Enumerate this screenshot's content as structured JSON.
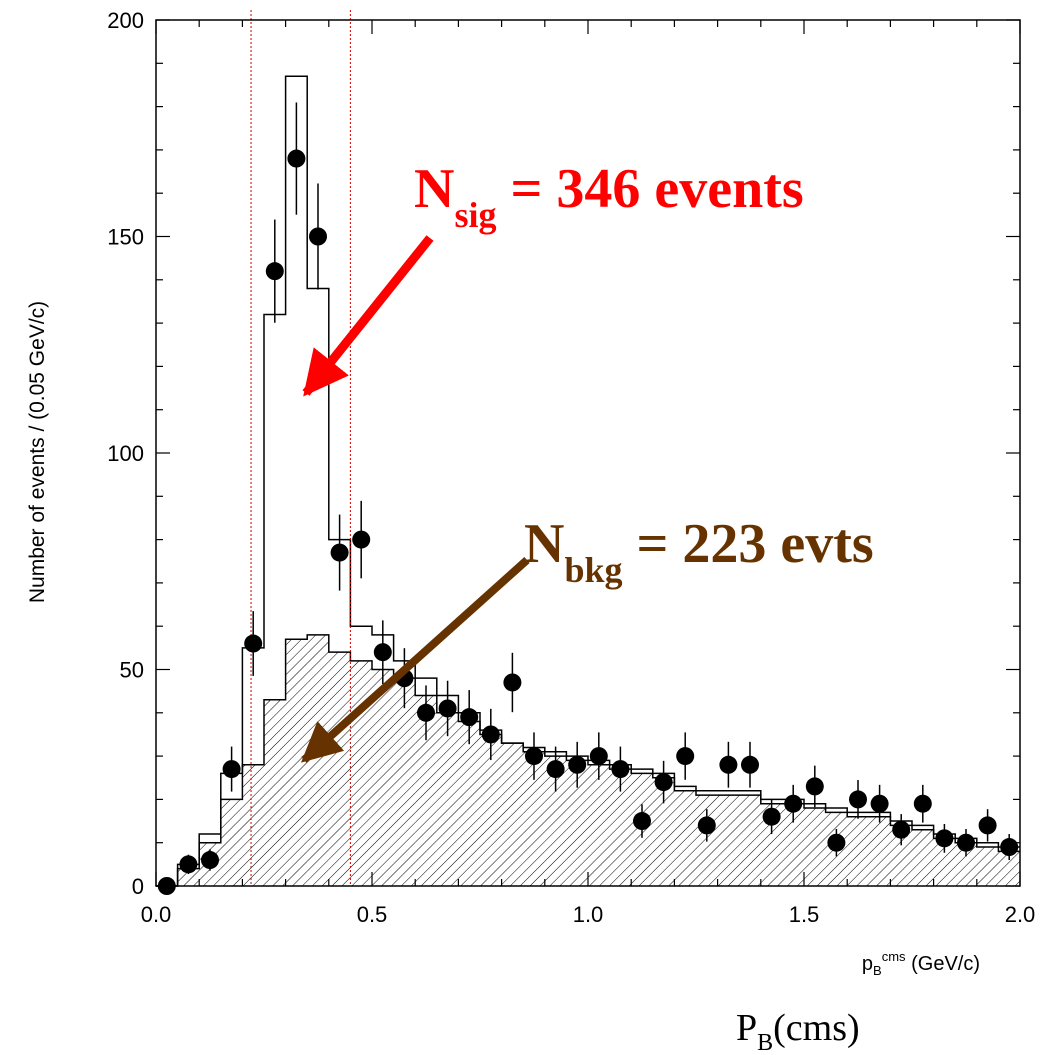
{
  "chart_data": {
    "type": "histogram",
    "xlabel": {
      "main": "p",
      "sub": "B",
      "sup": "cms",
      "unit": " (GeV/c)"
    },
    "ylabel": "Number of events / (0.05 GeV/c)",
    "xlim": [
      0.0,
      2.0
    ],
    "ylim": [
      0,
      200
    ],
    "x_ticks": [
      "0.0",
      "0.5",
      "1.0",
      "1.5",
      "2.0"
    ],
    "y_ticks": [
      "0",
      "50",
      "100",
      "150",
      "200"
    ],
    "bin_edges": [
      0.0,
      0.05,
      0.1,
      0.15,
      0.2,
      0.25,
      0.3,
      0.35,
      0.4,
      0.45,
      0.5,
      0.55,
      0.6,
      0.65,
      0.7,
      0.75,
      0.8,
      0.85,
      0.9,
      0.95,
      1.0,
      1.05,
      1.1,
      1.15,
      1.2,
      1.25,
      1.3,
      1.35,
      1.4,
      1.45,
      1.5,
      1.55,
      1.6,
      1.65,
      1.7,
      1.75,
      1.8,
      1.85,
      1.9,
      1.95,
      2.0
    ],
    "series": [
      {
        "kind": "total_fit_histogram",
        "values": [
          0,
          5,
          12,
          26,
          55,
          132,
          187,
          138,
          80,
          60,
          58,
          52,
          48,
          44,
          40,
          36,
          33,
          32,
          31,
          30,
          29,
          28,
          27,
          26,
          23,
          22,
          22,
          22,
          20,
          20,
          19,
          18,
          17,
          17,
          15,
          14,
          12,
          11,
          10,
          9
        ]
      },
      {
        "kind": "background_hatched_histogram",
        "values": [
          0,
          4,
          10,
          20,
          28,
          43,
          57,
          58,
          54,
          52,
          50,
          48,
          44,
          40,
          38,
          35,
          33,
          31,
          30,
          29,
          28,
          27,
          26,
          25,
          22,
          21,
          21,
          21,
          19,
          19,
          18,
          17,
          16,
          16,
          14,
          13,
          11,
          10,
          9,
          8
        ]
      },
      {
        "kind": "data_points",
        "x": [
          0.025,
          0.075,
          0.125,
          0.175,
          0.225,
          0.275,
          0.325,
          0.375,
          0.425,
          0.475,
          0.525,
          0.575,
          0.625,
          0.675,
          0.725,
          0.775,
          0.825,
          0.875,
          0.925,
          0.975,
          1.025,
          1.075,
          1.125,
          1.175,
          1.225,
          1.275,
          1.325,
          1.375,
          1.425,
          1.475,
          1.525,
          1.575,
          1.625,
          1.675,
          1.725,
          1.775,
          1.825,
          1.875,
          1.925,
          1.975
        ],
        "y": [
          0,
          5,
          6,
          27,
          56,
          142,
          168,
          150,
          77,
          80,
          54,
          48,
          40,
          41,
          39,
          35,
          47,
          30,
          27,
          28,
          30,
          27,
          15,
          24,
          30,
          14,
          28,
          28,
          16,
          19,
          23,
          10,
          20,
          19,
          13,
          19,
          11,
          10,
          14,
          9
        ]
      }
    ],
    "signal_window": [
      0.22,
      0.45
    ],
    "annotations": {
      "signal": {
        "prefix": "N",
        "sub": "sig",
        "text": " = 346 events",
        "color": "#ff0000"
      },
      "background": {
        "prefix": "N",
        "sub": "bkg",
        "text": " = 223 evts",
        "color": "#663300"
      }
    },
    "caption": {
      "main": "P",
      "sub": "B",
      "rest": "(cms)"
    }
  }
}
